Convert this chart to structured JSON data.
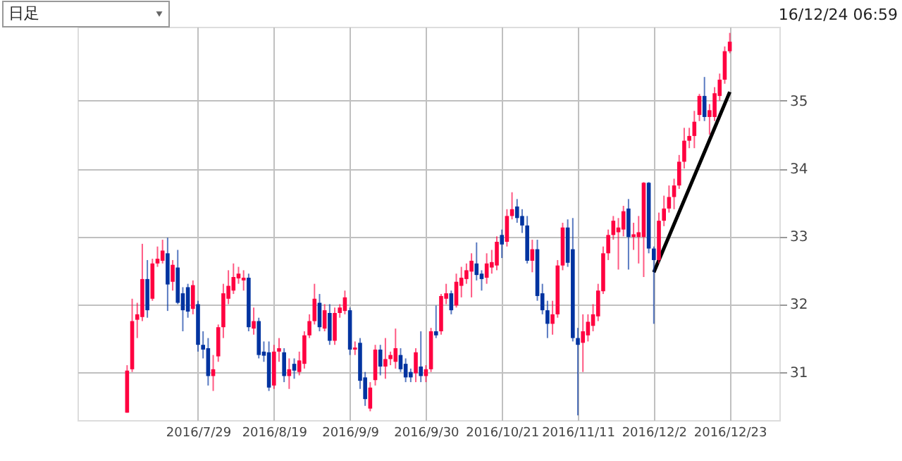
{
  "chart_data": {
    "type": "candlestick",
    "title": "日足",
    "annotations": [
      "16/12/24 06:59"
    ],
    "categories": [
      null,
      null,
      null,
      null,
      null,
      null,
      null,
      null,
      null,
      null,
      null,
      null,
      null,
      null,
      "2016/7/29",
      null,
      null,
      null,
      null,
      null,
      null,
      null,
      null,
      null,
      null,
      null,
      null,
      null,
      null,
      "2016/8/19",
      null,
      null,
      null,
      null,
      null,
      null,
      null,
      null,
      null,
      null,
      null,
      null,
      null,
      null,
      "2016/9/9",
      null,
      null,
      null,
      null,
      null,
      null,
      null,
      null,
      null,
      null,
      null,
      null,
      null,
      null,
      "2016/9/30",
      null,
      null,
      null,
      null,
      null,
      null,
      null,
      null,
      null,
      null,
      null,
      null,
      null,
      null,
      "2016/10/21",
      null,
      null,
      null,
      null,
      null,
      null,
      null,
      null,
      null,
      null,
      null,
      null,
      null,
      null,
      "2016/11/11",
      null,
      null,
      null,
      null,
      null,
      null,
      null,
      null,
      null,
      null,
      null,
      null,
      null,
      null,
      "2016/12/2",
      null,
      null,
      null,
      null,
      null,
      null,
      null,
      null,
      null,
      null,
      null,
      null,
      null,
      null,
      "2016/12/23"
    ],
    "ohlc": [
      [
        30.4,
        31.1,
        30.4,
        31.02
      ],
      [
        31.04,
        32.08,
        31.0,
        31.75
      ],
      [
        31.77,
        32.02,
        31.5,
        31.85
      ],
      [
        31.81,
        32.89,
        31.75,
        32.37
      ],
      [
        32.37,
        32.65,
        31.8,
        31.91
      ],
      [
        32.08,
        32.67,
        32.05,
        32.6
      ],
      [
        32.6,
        32.85,
        32.55,
        32.67
      ],
      [
        32.64,
        32.95,
        32.6,
        32.79
      ],
      [
        32.75,
        32.98,
        31.9,
        32.29
      ],
      [
        32.33,
        32.65,
        32.2,
        32.58
      ],
      [
        32.54,
        32.8,
        32.0,
        32.02
      ],
      [
        32.16,
        32.25,
        31.6,
        31.91
      ],
      [
        32.25,
        32.3,
        31.8,
        31.89
      ],
      [
        31.93,
        32.35,
        31.85,
        32.28
      ],
      [
        32.0,
        32.05,
        31.3,
        31.4
      ],
      [
        31.4,
        31.6,
        31.2,
        31.33
      ],
      [
        31.35,
        31.5,
        30.8,
        30.94
      ],
      [
        30.94,
        31.25,
        30.72,
        31.04
      ],
      [
        31.23,
        31.7,
        31.15,
        31.66
      ],
      [
        31.66,
        32.3,
        31.5,
        32.16
      ],
      [
        32.08,
        32.5,
        32.0,
        32.27
      ],
      [
        32.2,
        32.6,
        32.15,
        32.4
      ],
      [
        32.38,
        32.55,
        32.3,
        32.45
      ],
      [
        32.35,
        32.5,
        32.2,
        32.39
      ],
      [
        32.39,
        32.45,
        31.6,
        31.66
      ],
      [
        31.64,
        31.95,
        31.55,
        31.75
      ],
      [
        31.75,
        31.8,
        31.2,
        31.25
      ],
      [
        31.3,
        31.45,
        31.15,
        31.24
      ],
      [
        31.29,
        31.45,
        30.72,
        30.77
      ],
      [
        30.8,
        31.4,
        30.75,
        31.3
      ],
      [
        31.3,
        31.5,
        31.15,
        31.35
      ],
      [
        31.29,
        31.35,
        30.85,
        30.94
      ],
      [
        30.94,
        31.2,
        30.75,
        31.04
      ],
      [
        31.12,
        31.2,
        30.9,
        31.02
      ],
      [
        31.0,
        31.3,
        30.95,
        31.17
      ],
      [
        31.12,
        31.6,
        31.05,
        31.54
      ],
      [
        31.54,
        31.85,
        31.5,
        31.75
      ],
      [
        31.75,
        32.3,
        31.7,
        32.08
      ],
      [
        32.02,
        32.15,
        31.6,
        31.66
      ],
      [
        31.64,
        32.0,
        31.6,
        31.91
      ],
      [
        31.87,
        32.0,
        31.4,
        31.46
      ],
      [
        31.46,
        31.95,
        31.4,
        31.87
      ],
      [
        31.87,
        32.0,
        31.8,
        31.95
      ],
      [
        31.9,
        32.2,
        31.85,
        32.1
      ],
      [
        31.91,
        31.95,
        31.25,
        31.33
      ],
      [
        31.33,
        31.45,
        31.25,
        31.36
      ],
      [
        31.43,
        31.5,
        30.75,
        30.87
      ],
      [
        30.92,
        31.0,
        30.5,
        30.6
      ],
      [
        30.46,
        30.85,
        30.42,
        30.77
      ],
      [
        30.88,
        31.4,
        30.8,
        31.33
      ],
      [
        31.33,
        31.4,
        30.95,
        31.08
      ],
      [
        31.08,
        31.5,
        30.9,
        31.19
      ],
      [
        31.19,
        31.3,
        31.1,
        31.25
      ],
      [
        31.15,
        31.64,
        31.05,
        31.35
      ],
      [
        31.25,
        31.35,
        31.0,
        31.04
      ],
      [
        31.12,
        31.2,
        30.85,
        30.92
      ],
      [
        31.0,
        31.05,
        30.85,
        30.92
      ],
      [
        30.98,
        31.35,
        30.85,
        31.29
      ],
      [
        31.08,
        31.6,
        30.85,
        30.94
      ],
      [
        30.94,
        31.1,
        30.85,
        31.04
      ],
      [
        31.04,
        31.65,
        31.0,
        31.6
      ],
      [
        31.6,
        31.98,
        31.5,
        31.54
      ],
      [
        31.6,
        32.15,
        31.55,
        32.12
      ],
      [
        32.08,
        32.3,
        32.0,
        32.16
      ],
      [
        32.16,
        32.2,
        31.85,
        31.91
      ],
      [
        31.98,
        32.45,
        31.95,
        32.33
      ],
      [
        32.27,
        32.55,
        32.1,
        32.39
      ],
      [
        32.37,
        32.6,
        32.3,
        32.5
      ],
      [
        32.48,
        32.75,
        32.1,
        32.64
      ],
      [
        32.6,
        32.91,
        32.35,
        32.43
      ],
      [
        32.45,
        32.5,
        32.2,
        32.37
      ],
      [
        32.39,
        32.75,
        32.3,
        32.6
      ],
      [
        32.54,
        32.8,
        32.45,
        32.62
      ],
      [
        32.57,
        33.0,
        32.5,
        32.92
      ],
      [
        33.02,
        33.1,
        32.68,
        32.88
      ],
      [
        32.92,
        33.4,
        32.85,
        33.3
      ],
      [
        33.3,
        33.65,
        33.25,
        33.4
      ],
      [
        33.44,
        33.55,
        33.2,
        33.27
      ],
      [
        33.3,
        33.4,
        33.05,
        33.16
      ],
      [
        33.16,
        33.3,
        32.6,
        32.64
      ],
      [
        32.64,
        32.95,
        32.47,
        32.81
      ],
      [
        32.81,
        32.95,
        32.05,
        32.12
      ],
      [
        32.16,
        32.3,
        31.85,
        31.91
      ],
      [
        31.91,
        32.05,
        31.5,
        31.71
      ],
      [
        31.71,
        32.05,
        31.55,
        31.85
      ],
      [
        31.85,
        32.65,
        31.8,
        32.57
      ],
      [
        32.57,
        33.2,
        32.5,
        33.13
      ],
      [
        33.13,
        33.25,
        32.55,
        32.61
      ],
      [
        32.81,
        33.27,
        31.45,
        31.5
      ],
      [
        31.5,
        31.65,
        30.36,
        31.4
      ],
      [
        31.43,
        31.85,
        31.0,
        31.6
      ],
      [
        31.54,
        31.85,
        31.45,
        31.74
      ],
      [
        31.68,
        32.0,
        31.6,
        31.85
      ],
      [
        31.82,
        32.3,
        31.75,
        32.2
      ],
      [
        32.19,
        32.85,
        32.15,
        32.75
      ],
      [
        32.75,
        33.1,
        32.65,
        33.02
      ],
      [
        33.02,
        33.3,
        32.95,
        33.23
      ],
      [
        33.06,
        33.27,
        32.51,
        33.13
      ],
      [
        33.1,
        33.45,
        33.0,
        33.37
      ],
      [
        33.41,
        33.55,
        32.51,
        32.99
      ],
      [
        32.99,
        33.2,
        32.8,
        33.03
      ],
      [
        32.99,
        33.3,
        32.6,
        33.06
      ],
      [
        32.99,
        33.8,
        32.4,
        33.79
      ],
      [
        33.79,
        33.8,
        32.75,
        32.82
      ],
      [
        32.82,
        32.85,
        31.71,
        32.65
      ],
      [
        32.65,
        33.35,
        32.6,
        33.23
      ],
      [
        33.23,
        33.6,
        33.15,
        33.41
      ],
      [
        33.41,
        33.75,
        33.35,
        33.58
      ],
      [
        33.58,
        33.85,
        33.4,
        33.75
      ],
      [
        33.75,
        34.2,
        33.7,
        34.1
      ],
      [
        34.1,
        34.6,
        34.0,
        34.41
      ],
      [
        34.41,
        34.6,
        34.3,
        34.48
      ],
      [
        34.48,
        34.85,
        34.3,
        34.69
      ],
      [
        34.79,
        35.1,
        34.7,
        35.07
      ],
      [
        35.07,
        35.35,
        34.7,
        34.76
      ],
      [
        34.76,
        34.95,
        34.5,
        34.86
      ],
      [
        34.76,
        35.2,
        34.7,
        35.11
      ],
      [
        35.07,
        35.4,
        35.0,
        35.31
      ],
      [
        35.31,
        35.8,
        35.25,
        35.73
      ],
      [
        35.73,
        36.0,
        35.7,
        35.87
      ]
    ],
    "colors": [
      "#ff0040",
      "#ff0040",
      "#ff0040",
      "#ff0040",
      "#0033a0",
      "#ff0040",
      "#ff0040",
      "#ff0040",
      "#0033a0",
      "#ff0040",
      "#0033a0",
      "#0033a0",
      "#0033a0",
      "#ff0040",
      "#0033a0",
      "#0033a0",
      "#0033a0",
      "#ff0040",
      "#ff0040",
      "#ff0040",
      "#ff0040",
      "#ff0040",
      "#ff0040",
      "#ff0040",
      "#0033a0",
      "#ff0040",
      "#0033a0",
      "#0033a0",
      "#0033a0",
      "#ff0040",
      "#ff0040",
      "#0033a0",
      "#ff0040",
      "#0033a0",
      "#ff0040",
      "#ff0040",
      "#ff0040",
      "#ff0040",
      "#0033a0",
      "#ff0040",
      "#0033a0",
      "#ff0040",
      "#ff0040",
      "#ff0040",
      "#0033a0",
      "#ff0040",
      "#0033a0",
      "#0033a0",
      "#ff0040",
      "#ff0040",
      "#0033a0",
      "#ff0040",
      "#ff0040",
      "#ff0040",
      "#0033a0",
      "#0033a0",
      "#0033a0",
      "#ff0040",
      "#0033a0",
      "#ff0040",
      "#ff0040",
      "#0033a0",
      "#ff0040",
      "#ff0040",
      "#0033a0",
      "#ff0040",
      "#ff0040",
      "#ff0040",
      "#ff0040",
      "#0033a0",
      "#0033a0",
      "#ff0040",
      "#ff0040",
      "#ff0040",
      "#0033a0",
      "#ff0040",
      "#ff0040",
      "#0033a0",
      "#0033a0",
      "#0033a0",
      "#ff0040",
      "#0033a0",
      "#0033a0",
      "#0033a0",
      "#ff0040",
      "#ff0040",
      "#ff0040",
      "#0033a0",
      "#0033a0",
      "#0033a0",
      "#ff0040",
      "#ff0040",
      "#ff0040",
      "#ff0040",
      "#ff0040",
      "#ff0040",
      "#ff0040",
      "#ff0040",
      "#ff0040",
      "#0033a0",
      "#ff0040",
      "#ff0040",
      "#ff0040",
      "#0033a0",
      "#0033a0",
      "#ff0040",
      "#ff0040",
      "#ff0040",
      "#ff0040",
      "#ff0040",
      "#ff0040",
      "#ff0040",
      "#ff0040",
      "#ff0040",
      "#0033a0",
      "#ff0040",
      "#ff0040",
      "#ff0040",
      "#ff0040",
      "#ff0040"
    ],
    "series": [
      {
        "type": "line",
        "color": "#000000",
        "x": [
          "2016/12/2",
          "2016/12/23"
        ],
        "values": [
          32.47,
          35.13
        ]
      }
    ],
    "ylim": [
      30.29,
      36.09
    ],
    "yticks": [
      31,
      32,
      33,
      34,
      35
    ],
    "grid": true
  }
}
